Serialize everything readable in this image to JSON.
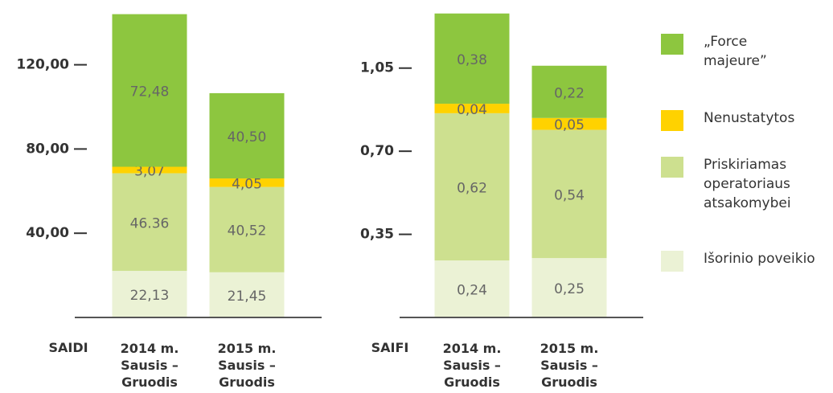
{
  "chart_data": [
    {
      "type": "bar",
      "stacked": true,
      "x_label": "SAIDI",
      "categories": [
        "2014 m.\nSausis –\nGruodis",
        "2015 m.\nSausis –\nGruodis"
      ],
      "ylim": [
        0,
        150
      ],
      "yticks": [
        {
          "value": 40,
          "label": "40,00"
        },
        {
          "value": 80,
          "label": "80,00"
        },
        {
          "value": 120,
          "label": "120,00"
        }
      ],
      "series": [
        {
          "name": "Išorinio poveikio",
          "color": "#ebf2d5",
          "values": [
            22.13,
            21.45
          ],
          "value_labels": [
            "22,13",
            "21,45"
          ]
        },
        {
          "name": "Priskiriamas operatoriaus atsakomybei",
          "color": "#cde08f",
          "values": [
            46.36,
            40.52
          ],
          "value_labels": [
            "46.36",
            "40,52"
          ]
        },
        {
          "name": "Nenustatytos",
          "color": "#ffd200",
          "values": [
            3.07,
            4.05
          ],
          "value_labels": [
            "3,07",
            "4,05"
          ]
        },
        {
          "name": "„Force majeure”",
          "color": "#8dc63f",
          "values": [
            72.48,
            40.5
          ],
          "value_labels": [
            "72,48",
            "40,50"
          ]
        }
      ]
    },
    {
      "type": "bar",
      "stacked": true,
      "x_label": "SAIFI",
      "categories": [
        "2014 m.\nSausis –\nGruodis",
        "2015 m.\nSausis –\nGruodis"
      ],
      "ylim": [
        0,
        1.33
      ],
      "yticks": [
        {
          "value": 0.35,
          "label": "0,35"
        },
        {
          "value": 0.7,
          "label": "0,70"
        },
        {
          "value": 1.05,
          "label": "1,05"
        }
      ],
      "series": [
        {
          "values": [
            0.24,
            0.25
          ],
          "value_labels": [
            "0,24",
            "0,25"
          ]
        },
        {
          "values": [
            0.62,
            0.54
          ],
          "value_labels": [
            "0,62",
            "0,54"
          ]
        },
        {
          "values": [
            0.04,
            0.05
          ],
          "value_labels": [
            "0,04",
            "0,05"
          ]
        },
        {
          "values": [
            0.38,
            0.22
          ],
          "value_labels": [
            "0,38",
            "0,22"
          ]
        }
      ]
    }
  ]
}
